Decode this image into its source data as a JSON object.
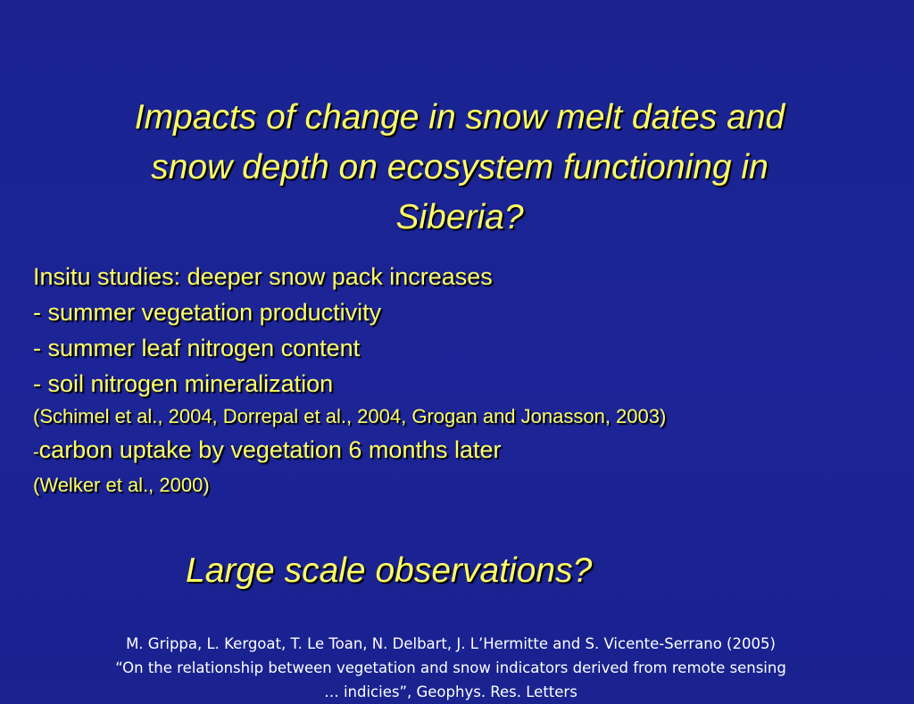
{
  "slide": {
    "title_lines": [
      "Impacts of change in snow melt dates and",
      "snow depth on ecosystem functioning in",
      "Siberia?"
    ],
    "intro": "Insitu  studies: deeper snow pack increases",
    "bullets": [
      "- summer vegetation productivity",
      "- summer leaf nitrogen content",
      "- soil  nitrogen mineralization"
    ],
    "ref_1": "(Schimel et al., 2004, Dorrepal et al., 2004, Grogan and Jonasson, 2003)",
    "bullet_4_dash": "-",
    "bullet_4_text": "carbon uptake by vegetation 6 months later",
    "ref_2": "(Welker et al., 2000)",
    "subtitle": "Large scale observations?",
    "citation_lines": [
      "M. Grippa, L. Kergoat, T. Le Toan, N. Delbart, J. L’Hermitte and S. Vicente-Serrano (2005)",
      "“On the relationship between vegetation and snow indicators derived from remote sensing",
      "… indicies”, Geophys. Res. Letters"
    ]
  },
  "colors": {
    "background": "#1c2497",
    "text_yellow": "#ffff66",
    "text_white": "#ffffff"
  }
}
